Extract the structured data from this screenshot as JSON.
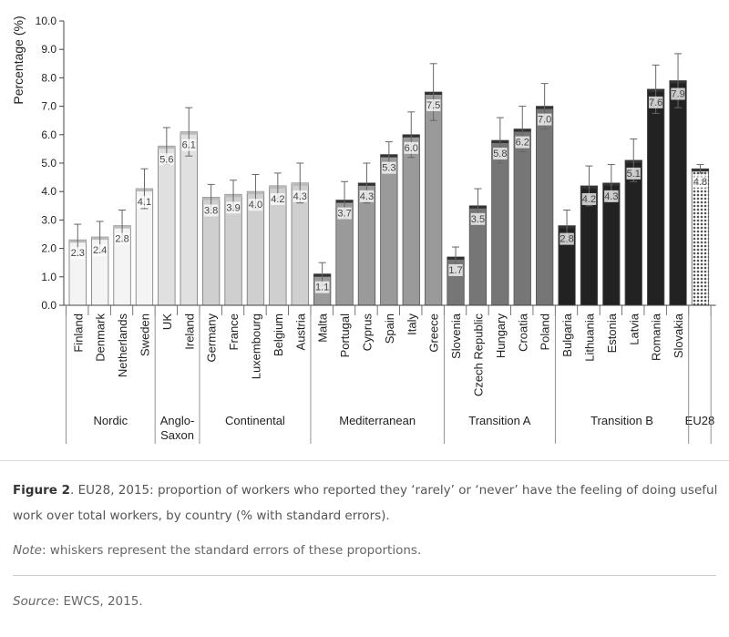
{
  "chart_data": {
    "type": "bar",
    "ylabel": "Percentage (%)",
    "ylim": [
      0,
      10
    ],
    "yticks": [
      "0.0",
      "1.0",
      "2.0",
      "3.0",
      "4.0",
      "5.0",
      "6.0",
      "7.0",
      "8.0",
      "9.0",
      "10.0"
    ],
    "grid": false,
    "bars": [
      {
        "country": "Finland",
        "group": "Nordic",
        "value": 2.3,
        "error": 0.55,
        "label": "2.3"
      },
      {
        "country": "Denmark",
        "group": "Nordic",
        "value": 2.4,
        "error": 0.55,
        "label": "2.4"
      },
      {
        "country": "Netherlands",
        "group": "Nordic",
        "value": 2.8,
        "error": 0.55,
        "label": "2.8"
      },
      {
        "country": "Sweden",
        "group": "Nordic",
        "value": 4.1,
        "error": 0.7,
        "label": "4.1"
      },
      {
        "country": "UK",
        "group": "Anglo-Saxon",
        "value": 5.6,
        "error": 0.65,
        "label": "5.6"
      },
      {
        "country": "Ireland",
        "group": "Anglo-Saxon",
        "value": 6.1,
        "error": 0.85,
        "label": "6.1"
      },
      {
        "country": "Germany",
        "group": "Continental",
        "value": 3.8,
        "error": 0.45,
        "label": "3.8"
      },
      {
        "country": "France",
        "group": "Continental",
        "value": 3.9,
        "error": 0.5,
        "label": "3.9"
      },
      {
        "country": "Luxembourg",
        "group": "Continental",
        "value": 4.0,
        "error": 0.6,
        "label": "4.0"
      },
      {
        "country": "Belgium",
        "group": "Continental",
        "value": 4.2,
        "error": 0.45,
        "label": "4.2"
      },
      {
        "country": "Austria",
        "group": "Continental",
        "value": 4.3,
        "error": 0.7,
        "label": "4.3"
      },
      {
        "country": "Malta",
        "group": "Mediterranean",
        "value": 1.1,
        "error": 0.4,
        "label": "1.1"
      },
      {
        "country": "Portugal",
        "group": "Mediterranean",
        "value": 3.7,
        "error": 0.65,
        "label": "3.7"
      },
      {
        "country": "Cyprus",
        "group": "Mediterranean",
        "value": 4.3,
        "error": 0.7,
        "label": "4.3"
      },
      {
        "country": "Spain",
        "group": "Mediterranean",
        "value": 5.3,
        "error": 0.45,
        "label": "5.3"
      },
      {
        "country": "Italy",
        "group": "Mediterranean",
        "value": 6.0,
        "error": 0.8,
        "label": "6.0"
      },
      {
        "country": "Greece",
        "group": "Mediterranean",
        "value": 7.5,
        "error": 1.0,
        "label": "7.5"
      },
      {
        "country": "Slovenia",
        "group": "Transition A",
        "value": 1.7,
        "error": 0.35,
        "label": "1.7"
      },
      {
        "country": "Czech Republic",
        "group": "Transition A",
        "value": 3.5,
        "error": 0.6,
        "label": "3.5"
      },
      {
        "country": "Hungary",
        "group": "Transition A",
        "value": 5.8,
        "error": 0.8,
        "label": "5.8"
      },
      {
        "country": "Croatia",
        "group": "Transition A",
        "value": 6.2,
        "error": 0.8,
        "label": "6.2"
      },
      {
        "country": "Poland",
        "group": "Transition A",
        "value": 7.0,
        "error": 0.8,
        "label": "7.0"
      },
      {
        "country": "Bulgaria",
        "group": "Transition B",
        "value": 2.8,
        "error": 0.55,
        "label": "2.8"
      },
      {
        "country": "Lithuania",
        "group": "Transition B",
        "value": 4.2,
        "error": 0.7,
        "label": "4.2"
      },
      {
        "country": "Estonia",
        "group": "Transition B",
        "value": 4.3,
        "error": 0.65,
        "label": "4.3"
      },
      {
        "country": "Latvia",
        "group": "Transition B",
        "value": 5.1,
        "error": 0.75,
        "label": "5.1"
      },
      {
        "country": "Romania",
        "group": "Transition B",
        "value": 7.6,
        "error": 0.85,
        "label": "7.6"
      },
      {
        "country": "Slovakia",
        "group": "Transition B",
        "value": 7.9,
        "error": 0.95,
        "label": "7.9"
      },
      {
        "country": "",
        "group": "EU28",
        "value": 4.8,
        "error": 0.15,
        "label": "4.8"
      }
    ],
    "groups": [
      {
        "name": "Nordic",
        "lines": [
          "Nordic"
        ],
        "color": "#f4f4f4"
      },
      {
        "name": "Anglo-Saxon",
        "lines": [
          "Anglo-",
          "Saxon"
        ],
        "color": "#e0e0e0"
      },
      {
        "name": "Continental",
        "lines": [
          "Continental"
        ],
        "color": "#cfcfcf"
      },
      {
        "name": "Mediterranean",
        "lines": [
          "Mediterranean"
        ],
        "color": "#9a9a9a"
      },
      {
        "name": "Transition A",
        "lines": [
          "Transition A"
        ],
        "color": "#767676"
      },
      {
        "name": "Transition B",
        "lines": [
          "Transition B"
        ],
        "color": "#222222"
      },
      {
        "name": "EU28",
        "lines": [
          "EU28"
        ],
        "color": "pattern"
      }
    ]
  },
  "caption": {
    "figure_label": "Figure 2",
    "text": ". EU28, 2015: proportion of workers who reported they ‘rarely’ or ‘never’ have the feeling of doing useful work over total workers, by country (% with standard errors).",
    "note_label": "Note",
    "note_text": ": whiskers represent the standard errors of these proportions.",
    "source_label": "Source",
    "source_text": ": EWCS, 2015."
  }
}
